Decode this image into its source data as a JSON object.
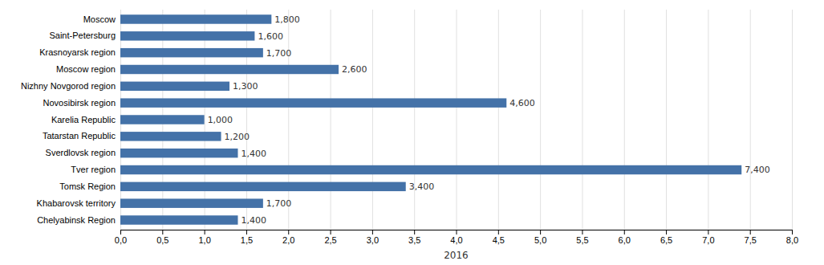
{
  "chart_data": {
    "type": "bar",
    "orientation": "horizontal",
    "categories": [
      "Chelyabinsk Region",
      "Khabarovsk territory",
      "Tomsk Region",
      "Tver region",
      "Sverdlovsk region",
      "Tatarstan Republic",
      "Karelia Republic",
      "Novosibirsk region",
      "Nizhny Novgorod region",
      "Moscow region",
      "Krasnoyarsk region",
      "Saint-Petersburg",
      "Moscow"
    ],
    "values": [
      1.4,
      1.7,
      3.4,
      7.4,
      1.4,
      1.2,
      1.0,
      4.6,
      1.3,
      2.6,
      1.7,
      1.6,
      1.8
    ],
    "value_labels": [
      "1,400",
      "1,700",
      "3,400",
      "7,400",
      "1,400",
      "1,200",
      "1,000",
      "4,600",
      "1,300",
      "2,600",
      "1,700",
      "1,600",
      "1,800"
    ],
    "data_labels": true,
    "color": "#4472a8",
    "xlabel": "2016",
    "xlim": [
      0,
      8.0
    ],
    "xticks": [
      {
        "value": 0.0,
        "label": "0,0"
      },
      {
        "value": 0.5,
        "label": "0,5"
      },
      {
        "value": 1.0,
        "label": "1,0"
      },
      {
        "value": 1.5,
        "label": "1,5"
      },
      {
        "value": 2.0,
        "label": "2,0"
      },
      {
        "value": 2.5,
        "label": "2,5"
      },
      {
        "value": 3.0,
        "label": "3,0"
      },
      {
        "value": 3.5,
        "label": "3,5"
      },
      {
        "value": 4.0,
        "label": "4,0"
      },
      {
        "value": 4.5,
        "label": "4,5"
      },
      {
        "value": 5.0,
        "label": "5,0"
      },
      {
        "value": 5.5,
        "label": "5,5"
      },
      {
        "value": 6.0,
        "label": "6,0"
      },
      {
        "value": 6.5,
        "label": "6,5"
      },
      {
        "value": 7.0,
        "label": "7,0"
      },
      {
        "value": 7.5,
        "label": "7,5"
      },
      {
        "value": 8.0,
        "label": "8,0"
      }
    ],
    "grid": true
  }
}
